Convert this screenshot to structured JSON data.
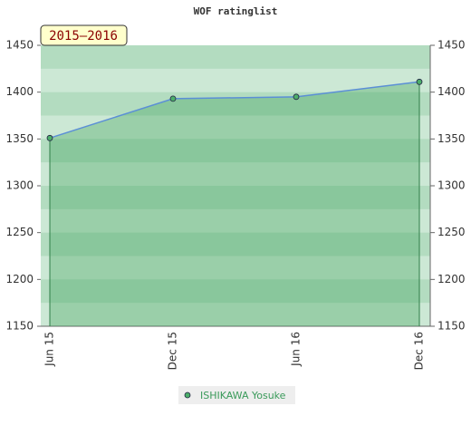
{
  "chart_data": {
    "type": "line",
    "title": "WOF ratinglist",
    "annotation": "2015–2016",
    "categories": [
      "Jun 15",
      "Dec 15",
      "Jun 16",
      "Dec 16"
    ],
    "series": [
      {
        "name": "ISHIKAWA Yosuke",
        "color": "#5b8fd6",
        "marker_color": "#4caf6a",
        "values": [
          1351,
          1393,
          1395,
          1411
        ]
      }
    ],
    "ylim": [
      1150,
      1450
    ],
    "yticks": [
      1150,
      1200,
      1250,
      1300,
      1350,
      1400,
      1450
    ],
    "y2lim": [
      1150,
      1450
    ],
    "y2ticks": [
      1150,
      1200,
      1250,
      1300,
      1350,
      1400,
      1450
    ],
    "grid": true,
    "legend": "bottom"
  }
}
